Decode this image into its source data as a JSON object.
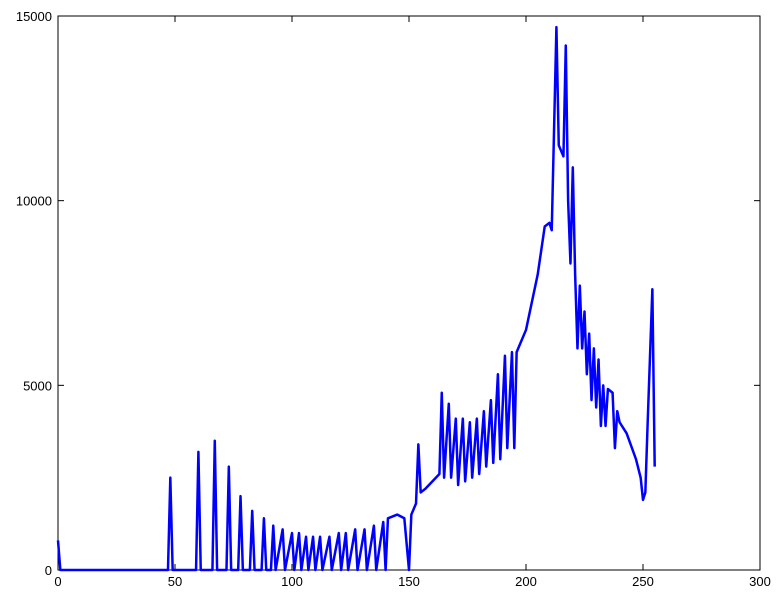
{
  "chart_data": {
    "type": "line",
    "x": [
      0,
      1,
      46,
      47,
      48,
      49,
      59,
      60,
      61,
      66,
      67,
      68,
      72,
      73,
      74,
      77,
      78,
      79,
      82,
      83,
      84,
      87,
      88,
      89,
      91,
      92,
      93,
      96,
      97,
      100,
      101,
      103,
      104,
      106,
      107,
      109,
      110,
      112,
      113,
      116,
      117,
      120,
      121,
      123,
      124,
      127,
      128,
      131,
      132,
      135,
      136,
      139,
      140,
      141,
      145,
      148,
      150,
      151,
      153,
      154,
      155,
      157,
      160,
      163,
      164,
      165,
      167,
      168,
      170,
      171,
      173,
      174,
      176,
      177,
      179,
      180,
      182,
      183,
      185,
      186,
      188,
      189,
      191,
      192,
      194,
      195,
      196,
      198,
      200,
      205,
      208,
      210,
      211,
      213,
      214,
      216,
      217,
      218,
      219,
      220,
      221,
      222,
      223,
      224,
      225,
      226,
      227,
      228,
      229,
      230,
      231,
      232,
      233,
      234,
      235,
      237,
      238,
      239,
      240,
      243,
      247,
      249,
      250,
      251,
      252,
      254,
      255
    ],
    "series": [
      {
        "color": "#0000ff",
        "values": [
          800,
          0,
          0,
          0,
          2500,
          0,
          0,
          3200,
          0,
          0,
          3500,
          0,
          0,
          2800,
          0,
          0,
          2000,
          0,
          0,
          1600,
          0,
          0,
          1400,
          0,
          0,
          1200,
          0,
          1100,
          0,
          1000,
          0,
          1000,
          0,
          900,
          0,
          900,
          0,
          900,
          0,
          900,
          0,
          1000,
          0,
          1000,
          0,
          1100,
          0,
          1100,
          0,
          1200,
          0,
          1300,
          0,
          1400,
          1500,
          1400,
          0,
          1500,
          1800,
          3400,
          2100,
          2200,
          2400,
          2600,
          4800,
          2500,
          4500,
          2500,
          4100,
          2300,
          4100,
          2400,
          4000,
          2500,
          4100,
          2600,
          4300,
          2800,
          4600,
          2900,
          5300,
          3000,
          5800,
          3300,
          5900,
          3300,
          5900,
          6200,
          6500,
          8000,
          9300,
          9400,
          9200,
          14700,
          11500,
          11200,
          14200,
          10000,
          8300,
          10900,
          8000,
          6000,
          7700,
          6000,
          7000,
          5300,
          6400,
          4600,
          6000,
          4400,
          5700,
          3900,
          5000,
          3900,
          4900,
          4800,
          3300,
          4300,
          4000,
          3700,
          3000,
          2500,
          1900,
          2100,
          4000,
          7600,
          2800
        ]
      }
    ],
    "xlim": [
      0,
      300
    ],
    "xticks": [
      0,
      50,
      100,
      150,
      200,
      250,
      300
    ],
    "ylim": [
      0,
      15000
    ],
    "yticks": [
      0,
      5000,
      10000,
      15000
    ]
  }
}
